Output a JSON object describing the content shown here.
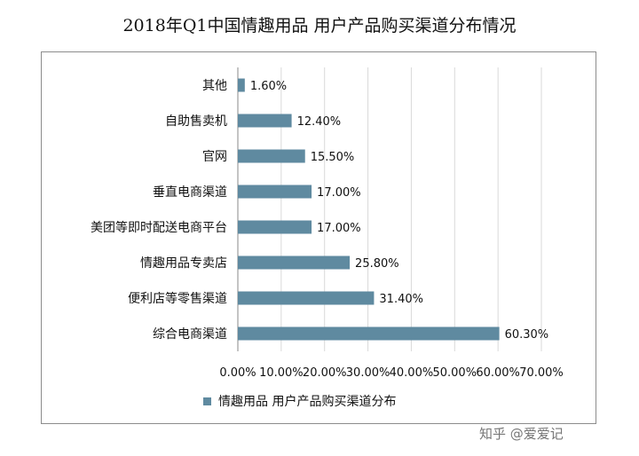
{
  "chart_data": {
    "type": "bar",
    "orientation": "horizontal",
    "title": "2018年Q1中国情趣用品 用户产品购买渠道分布情况",
    "categories": [
      "其他",
      "自助售卖机",
      "官网",
      "垂直电商渠道",
      "美团等即时配送电商平台",
      "情趣用品专卖店",
      "便利店等零售渠道",
      "综合电商渠道"
    ],
    "series": [
      {
        "name": "情趣用品 用户产品购买渠道分布",
        "values": [
          1.6,
          12.4,
          15.5,
          17.0,
          17.0,
          25.8,
          31.4,
          60.3
        ],
        "value_labels": [
          "1.60%",
          "12.40%",
          "15.50%",
          "17.00%",
          "17.00%",
          "25.80%",
          "31.40%",
          "60.30%"
        ]
      }
    ],
    "xlim": [
      0,
      70
    ],
    "x_ticks": [
      "0.00%",
      "10.00%",
      "20.00%",
      "30.00%",
      "40.00%",
      "50.00%",
      "60.00%",
      "70.00%"
    ],
    "grid": true,
    "legend_position": "bottom-left",
    "bar_color": "#5f8aa0"
  },
  "watermark": "知乎 @爱爱记"
}
